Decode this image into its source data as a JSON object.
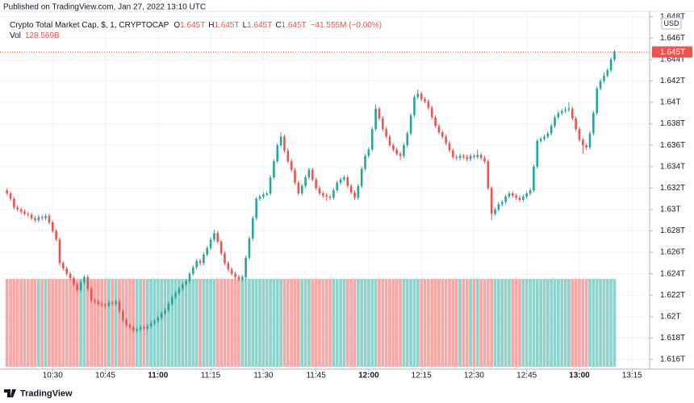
{
  "chart_data": {
    "type": "candlestick",
    "published": "Published on TradingView.com, Jan 27, 2022 13:10 UTC",
    "title": "Crypto Total Market Cap, $, 1, CRYPTOCAP",
    "ohlc_labels": [
      "O",
      "H",
      "L",
      "C"
    ],
    "ohlc_values": [
      "1.645T",
      "1.645T",
      "1.645T",
      "1.645T"
    ],
    "change": "−41.555M (−0.00%)",
    "volume_label": "Vol",
    "volume_value": "128.569B",
    "currency": "USD",
    "price_label": "1.645T",
    "brand": "TradingView",
    "x": [
      "10:17",
      "10:18",
      "10:19",
      "10:20",
      "10:21",
      "10:22",
      "10:23",
      "10:24",
      "10:25",
      "10:26",
      "10:27",
      "10:28",
      "10:29",
      "10:30",
      "10:31",
      "10:32",
      "10:33",
      "10:34",
      "10:35",
      "10:36",
      "10:37",
      "10:38",
      "10:39",
      "10:40",
      "10:41",
      "10:42",
      "10:43",
      "10:44",
      "10:45",
      "10:46",
      "10:47",
      "10:48",
      "10:49",
      "10:50",
      "10:51",
      "10:52",
      "10:53",
      "10:54",
      "10:55",
      "10:56",
      "10:57",
      "10:58",
      "10:59",
      "11:00",
      "11:01",
      "11:02",
      "11:03",
      "11:04",
      "11:05",
      "11:06",
      "11:07",
      "11:08",
      "11:09",
      "11:10",
      "11:11",
      "11:12",
      "11:13",
      "11:14",
      "11:15",
      "11:16",
      "11:17",
      "11:18",
      "11:19",
      "11:20",
      "11:21",
      "11:22",
      "11:23",
      "11:24",
      "11:25",
      "11:26",
      "11:27",
      "11:28",
      "11:29",
      "11:30",
      "11:31",
      "11:32",
      "11:33",
      "11:34",
      "11:35",
      "11:36",
      "11:37",
      "11:38",
      "11:39",
      "11:40",
      "11:41",
      "11:42",
      "11:43",
      "11:44",
      "11:45",
      "11:46",
      "11:47",
      "11:48",
      "11:49",
      "11:50",
      "11:51",
      "11:52",
      "11:53",
      "11:54",
      "11:55",
      "11:56",
      "11:57",
      "11:58",
      "11:59",
      "12:00",
      "12:01",
      "12:02",
      "12:03",
      "12:04",
      "12:05",
      "12:06",
      "12:07",
      "12:08",
      "12:09",
      "12:10",
      "12:11",
      "12:12",
      "12:13",
      "12:14",
      "12:15",
      "12:16",
      "12:17",
      "12:18",
      "12:19",
      "12:20",
      "12:21",
      "12:22",
      "12:23",
      "12:24",
      "12:25",
      "12:26",
      "12:27",
      "12:28",
      "12:29",
      "12:30",
      "12:31",
      "12:32",
      "12:33",
      "12:34",
      "12:35",
      "12:36",
      "12:37",
      "12:38",
      "12:39",
      "12:40",
      "12:41",
      "12:42",
      "12:43",
      "12:44",
      "12:45",
      "12:46",
      "12:47",
      "12:48",
      "12:49",
      "12:50",
      "12:51",
      "12:52",
      "12:53",
      "12:54",
      "12:55",
      "12:56",
      "12:57",
      "12:58",
      "12:59",
      "13:00",
      "13:01",
      "13:02",
      "13:03",
      "13:04",
      "13:05",
      "13:06",
      "13:07",
      "13:08",
      "13:09",
      "13:10"
    ],
    "open": [
      1.6318,
      1.6315,
      1.631,
      1.6302,
      1.63,
      1.6298,
      1.6296,
      1.6295,
      1.6292,
      1.629,
      1.6293,
      1.6292,
      1.6294,
      1.6288,
      1.628,
      1.6272,
      1.625,
      1.6245,
      1.624,
      1.6236,
      1.623,
      1.6225,
      1.6232,
      1.6237,
      1.6226,
      1.6215,
      1.6214,
      1.6212,
      1.6211,
      1.621,
      1.6213,
      1.6212,
      1.6214,
      1.6205,
      1.6197,
      1.6192,
      1.619,
      1.6187,
      1.6188,
      1.619,
      1.6189,
      1.6191,
      1.6194,
      1.6196,
      1.6199,
      1.6203,
      1.6206,
      1.6212,
      1.6218,
      1.6222,
      1.6226,
      1.623,
      1.6233,
      1.624,
      1.6246,
      1.6252,
      1.625,
      1.6258,
      1.6264,
      1.6272,
      1.6278,
      1.627,
      1.6259,
      1.625,
      1.6244,
      1.624,
      1.6237,
      1.6235,
      1.6237,
      1.6255,
      1.6273,
      1.6292,
      1.631,
      1.6312,
      1.6314,
      1.6315,
      1.633,
      1.6345,
      1.636,
      1.6368,
      1.6355,
      1.6345,
      1.6337,
      1.6325,
      1.6315,
      1.6322,
      1.633,
      1.6337,
      1.6328,
      1.632,
      1.6315,
      1.6313,
      1.6312,
      1.6311,
      1.6318,
      1.6325,
      1.6328,
      1.633,
      1.6322,
      1.6316,
      1.6311,
      1.6322,
      1.6338,
      1.635,
      1.6356,
      1.6375,
      1.6394,
      1.6385,
      1.6375,
      1.6368,
      1.636,
      1.6356,
      1.6352,
      1.635,
      1.636,
      1.6371,
      1.6388,
      1.6405,
      1.6408,
      1.6403,
      1.6401,
      1.6395,
      1.6386,
      1.6378,
      1.6372,
      1.6368,
      1.6362,
      1.6355,
      1.6349,
      1.6348,
      1.635,
      1.6349,
      1.6347,
      1.635,
      1.6349,
      1.6351,
      1.6348,
      1.6345,
      1.632,
      1.6296,
      1.63,
      1.6305,
      1.6307,
      1.6312,
      1.6315,
      1.6313,
      1.6311,
      1.6309,
      1.6312,
      1.6315,
      1.6318,
      1.634,
      1.6364,
      1.6366,
      1.6368,
      1.6371,
      1.6378,
      1.6386,
      1.639,
      1.6392,
      1.6393,
      1.6394,
      1.6385,
      1.6375,
      1.6365,
      1.636,
      1.6358,
      1.6371,
      1.639,
      1.6413,
      1.642,
      1.6425,
      1.643,
      1.644
    ],
    "high": [
      1.632,
      1.6317,
      1.6312,
      1.6304,
      1.6302,
      1.63,
      1.6298,
      1.6297,
      1.6294,
      1.6295,
      1.6295,
      1.6296,
      1.6296,
      1.629,
      1.6282,
      1.6274,
      1.6252,
      1.6247,
      1.6242,
      1.6238,
      1.6232,
      1.6234,
      1.6239,
      1.6239,
      1.6228,
      1.6217,
      1.6216,
      1.6214,
      1.6213,
      1.6215,
      1.6215,
      1.6216,
      1.6216,
      1.6207,
      1.6199,
      1.6194,
      1.6192,
      1.619,
      1.6192,
      1.6192,
      1.6193,
      1.6196,
      1.6198,
      1.6201,
      1.6205,
      1.6208,
      1.6214,
      1.622,
      1.6224,
      1.6228,
      1.6232,
      1.6235,
      1.6242,
      1.6248,
      1.6254,
      1.6254,
      1.626,
      1.6266,
      1.6274,
      1.6281,
      1.628,
      1.6272,
      1.6261,
      1.6252,
      1.6246,
      1.6242,
      1.6239,
      1.6239,
      1.6257,
      1.6275,
      1.6294,
      1.6312,
      1.6314,
      1.6316,
      1.6317,
      1.6332,
      1.6347,
      1.6362,
      1.6372,
      1.637,
      1.6357,
      1.6347,
      1.6339,
      1.6327,
      1.6324,
      1.6332,
      1.6339,
      1.6339,
      1.633,
      1.6322,
      1.6317,
      1.6315,
      1.6314,
      1.632,
      1.6327,
      1.633,
      1.6332,
      1.6332,
      1.6324,
      1.6318,
      1.6324,
      1.634,
      1.6352,
      1.6358,
      1.6377,
      1.6398,
      1.6396,
      1.6387,
      1.6377,
      1.637,
      1.6362,
      1.6358,
      1.6354,
      1.6362,
      1.6373,
      1.639,
      1.6407,
      1.6412,
      1.641,
      1.6405,
      1.6403,
      1.6397,
      1.6388,
      1.638,
      1.6374,
      1.637,
      1.6364,
      1.6357,
      1.6351,
      1.6352,
      1.6352,
      1.6351,
      1.6352,
      1.6352,
      1.6356,
      1.6353,
      1.635,
      1.6347,
      1.6322,
      1.6302,
      1.6307,
      1.6309,
      1.6314,
      1.6317,
      1.6317,
      1.6315,
      1.6313,
      1.6314,
      1.6317,
      1.632,
      1.6342,
      1.6366,
      1.6368,
      1.637,
      1.6373,
      1.638,
      1.6388,
      1.6392,
      1.6394,
      1.6396,
      1.64,
      1.6396,
      1.6387,
      1.6377,
      1.6367,
      1.6362,
      1.6373,
      1.6392,
      1.6415,
      1.6422,
      1.6428,
      1.6432,
      1.6442,
      1.6449
    ],
    "low": [
      1.6313,
      1.6308,
      1.63,
      1.6298,
      1.6296,
      1.6294,
      1.6293,
      1.629,
      1.6288,
      1.6288,
      1.629,
      1.629,
      1.6286,
      1.6278,
      1.627,
      1.6248,
      1.6243,
      1.6238,
      1.6234,
      1.6228,
      1.6223,
      1.6223,
      1.623,
      1.6224,
      1.6213,
      1.6212,
      1.621,
      1.6209,
      1.6208,
      1.6208,
      1.621,
      1.621,
      1.6203,
      1.6195,
      1.619,
      1.6188,
      1.6185,
      1.6185,
      1.6186,
      1.6187,
      1.6187,
      1.6189,
      1.6192,
      1.6194,
      1.6197,
      1.6201,
      1.6204,
      1.621,
      1.6216,
      1.622,
      1.6224,
      1.6228,
      1.6231,
      1.6238,
      1.6244,
      1.6248,
      1.6248,
      1.6256,
      1.6262,
      1.627,
      1.6268,
      1.6257,
      1.6248,
      1.6242,
      1.6238,
      1.6235,
      1.6233,
      1.6233,
      1.6235,
      1.6253,
      1.6271,
      1.629,
      1.6308,
      1.631,
      1.6312,
      1.6313,
      1.6328,
      1.6343,
      1.6358,
      1.6353,
      1.6343,
      1.6335,
      1.6323,
      1.6313,
      1.6313,
      1.632,
      1.6328,
      1.6326,
      1.6318,
      1.6313,
      1.6311,
      1.6308,
      1.6309,
      1.6309,
      1.6316,
      1.6323,
      1.6326,
      1.632,
      1.6314,
      1.6309,
      1.6309,
      1.632,
      1.6336,
      1.6348,
      1.6354,
      1.6373,
      1.6383,
      1.6373,
      1.6366,
      1.6358,
      1.6354,
      1.635,
      1.6346,
      1.6348,
      1.6358,
      1.6369,
      1.6386,
      1.6403,
      1.6401,
      1.6399,
      1.6393,
      1.6384,
      1.6376,
      1.637,
      1.6366,
      1.636,
      1.6353,
      1.6347,
      1.6346,
      1.6346,
      1.6347,
      1.6345,
      1.6345,
      1.6347,
      1.6347,
      1.6346,
      1.6343,
      1.6318,
      1.629,
      1.6294,
      1.6298,
      1.6303,
      1.6305,
      1.631,
      1.6311,
      1.6309,
      1.6307,
      1.6307,
      1.631,
      1.6313,
      1.6316,
      1.6338,
      1.6362,
      1.6364,
      1.6366,
      1.6369,
      1.6376,
      1.6384,
      1.6388,
      1.639,
      1.6391,
      1.6383,
      1.6373,
      1.6363,
      1.6352,
      1.6356,
      1.6356,
      1.6369,
      1.6388,
      1.6411,
      1.6418,
      1.6423,
      1.6428,
      1.6438
    ],
    "close": [
      1.6315,
      1.631,
      1.6302,
      1.63,
      1.6298,
      1.6296,
      1.6295,
      1.6292,
      1.629,
      1.6293,
      1.6292,
      1.6294,
      1.6288,
      1.628,
      1.6272,
      1.625,
      1.6245,
      1.624,
      1.6236,
      1.623,
      1.6225,
      1.6232,
      1.6237,
      1.6226,
      1.6215,
      1.6214,
      1.6212,
      1.6211,
      1.621,
      1.6213,
      1.6212,
      1.6214,
      1.6205,
      1.6197,
      1.6192,
      1.619,
      1.6187,
      1.6188,
      1.619,
      1.6189,
      1.6191,
      1.6194,
      1.6196,
      1.6199,
      1.6203,
      1.6206,
      1.6212,
      1.6218,
      1.6222,
      1.6226,
      1.623,
      1.6233,
      1.624,
      1.6246,
      1.6252,
      1.625,
      1.6258,
      1.6264,
      1.6272,
      1.6278,
      1.627,
      1.6259,
      1.625,
      1.6244,
      1.624,
      1.6237,
      1.6235,
      1.6237,
      1.6255,
      1.6273,
      1.6292,
      1.631,
      1.6312,
      1.6314,
      1.6315,
      1.633,
      1.6345,
      1.636,
      1.6368,
      1.6355,
      1.6345,
      1.6337,
      1.6325,
      1.6315,
      1.6322,
      1.633,
      1.6337,
      1.6328,
      1.632,
      1.6315,
      1.6313,
      1.6312,
      1.6311,
      1.6318,
      1.6325,
      1.6328,
      1.633,
      1.6322,
      1.6316,
      1.6311,
      1.6322,
      1.6338,
      1.635,
      1.6356,
      1.6375,
      1.6394,
      1.6385,
      1.6375,
      1.6368,
      1.636,
      1.6356,
      1.6352,
      1.635,
      1.636,
      1.6371,
      1.6388,
      1.6405,
      1.6408,
      1.6403,
      1.6401,
      1.6395,
      1.6386,
      1.6378,
      1.6372,
      1.6368,
      1.6362,
      1.6355,
      1.6349,
      1.6348,
      1.635,
      1.6349,
      1.6347,
      1.635,
      1.6349,
      1.6351,
      1.6348,
      1.6345,
      1.632,
      1.6296,
      1.63,
      1.6305,
      1.6307,
      1.6312,
      1.6315,
      1.6313,
      1.6311,
      1.6309,
      1.6312,
      1.6315,
      1.6318,
      1.634,
      1.6364,
      1.6366,
      1.6368,
      1.6371,
      1.6378,
      1.6386,
      1.639,
      1.6392,
      1.6393,
      1.6394,
      1.6385,
      1.6375,
      1.6365,
      1.636,
      1.6358,
      1.6371,
      1.639,
      1.6413,
      1.642,
      1.6425,
      1.643,
      1.644,
      1.6447
    ],
    "volume": [
      128.569,
      128.569,
      128.569,
      128.569,
      128.569,
      128.569,
      128.569,
      128.569,
      128.569,
      128.569,
      128.569,
      128.569,
      128.569,
      128.569,
      128.569,
      128.569,
      128.569,
      128.569,
      128.569,
      128.569,
      128.569,
      128.569,
      128.569,
      128.569,
      128.569,
      128.569,
      128.569,
      128.569,
      128.569,
      128.569,
      128.569,
      128.569,
      128.569,
      128.569,
      128.569,
      128.569,
      128.569,
      128.569,
      128.569,
      128.569,
      128.569,
      128.569,
      128.569,
      128.569,
      128.569,
      128.569,
      128.569,
      128.569,
      128.569,
      128.569,
      128.569,
      128.569,
      128.569,
      128.569,
      128.569,
      128.569,
      128.569,
      128.569,
      128.569,
      128.569,
      128.569,
      128.569,
      128.569,
      128.569,
      128.569,
      128.569,
      128.569,
      128.569,
      128.569,
      128.569,
      128.569,
      128.569,
      128.569,
      128.569,
      128.569,
      128.569,
      128.569,
      128.569,
      128.569,
      128.569,
      128.569,
      128.569,
      128.569,
      128.569,
      128.569,
      128.569,
      128.569,
      128.569,
      128.569,
      128.569,
      128.569,
      128.569,
      128.569,
      128.569,
      128.569,
      128.569,
      128.569,
      128.569,
      128.569,
      128.569,
      128.569,
      128.569,
      128.569,
      128.569,
      128.569,
      128.569,
      128.569,
      128.569,
      128.569,
      128.569,
      128.569,
      128.569,
      128.569,
      128.569,
      128.569,
      128.569,
      128.569,
      128.569,
      128.569,
      128.569,
      128.569,
      128.569,
      128.569,
      128.569,
      128.569,
      128.569,
      128.569,
      128.569,
      128.569,
      128.569,
      128.569,
      128.569,
      128.569,
      128.569,
      128.569,
      128.569,
      128.569,
      128.569,
      128.569,
      128.569,
      128.569,
      128.569,
      128.569,
      128.569,
      128.569,
      128.569,
      128.569,
      128.569,
      128.569,
      128.569,
      128.569,
      128.569,
      128.569,
      128.569,
      128.569,
      128.569,
      128.569,
      128.569,
      128.569,
      128.569,
      128.569,
      128.569,
      128.569,
      128.569,
      128.569,
      128.569,
      128.569,
      128.569,
      128.569,
      128.569,
      128.569,
      128.569,
      128.569,
      128.569
    ],
    "ylim": [
      1.6151,
      1.6485
    ],
    "yticks": [
      {
        "value": 1.616,
        "label": "1.616T"
      },
      {
        "value": 1.618,
        "label": "1.618T"
      },
      {
        "value": 1.62,
        "label": "1.62T"
      },
      {
        "value": 1.622,
        "label": "1.622T"
      },
      {
        "value": 1.624,
        "label": "1.624T"
      },
      {
        "value": 1.626,
        "label": "1.626T"
      },
      {
        "value": 1.628,
        "label": "1.628T"
      },
      {
        "value": 1.63,
        "label": "1.63T"
      },
      {
        "value": 1.632,
        "label": "1.632T"
      },
      {
        "value": 1.634,
        "label": "1.634T"
      },
      {
        "value": 1.636,
        "label": "1.636T"
      },
      {
        "value": 1.638,
        "label": "1.638T"
      },
      {
        "value": 1.64,
        "label": "1.64T"
      },
      {
        "value": 1.642,
        "label": "1.642T"
      },
      {
        "value": 1.644,
        "label": "1.644T"
      },
      {
        "value": 1.646,
        "label": "1.646T"
      },
      {
        "value": 1.648,
        "label": "1.648T"
      }
    ],
    "xlim": [
      "10:15",
      "13:20"
    ],
    "xticks": [
      "10:30",
      "10:45",
      "11:00",
      "11:15",
      "11:30",
      "11:45",
      "12:00",
      "12:15",
      "12:30",
      "12:45",
      "13:00",
      "13:15"
    ],
    "grid": true,
    "up_color": "#26a69a",
    "down_color": "#ef5350",
    "volume_up_color": "#92d2cc",
    "volume_down_color": "#f7a9a7"
  }
}
